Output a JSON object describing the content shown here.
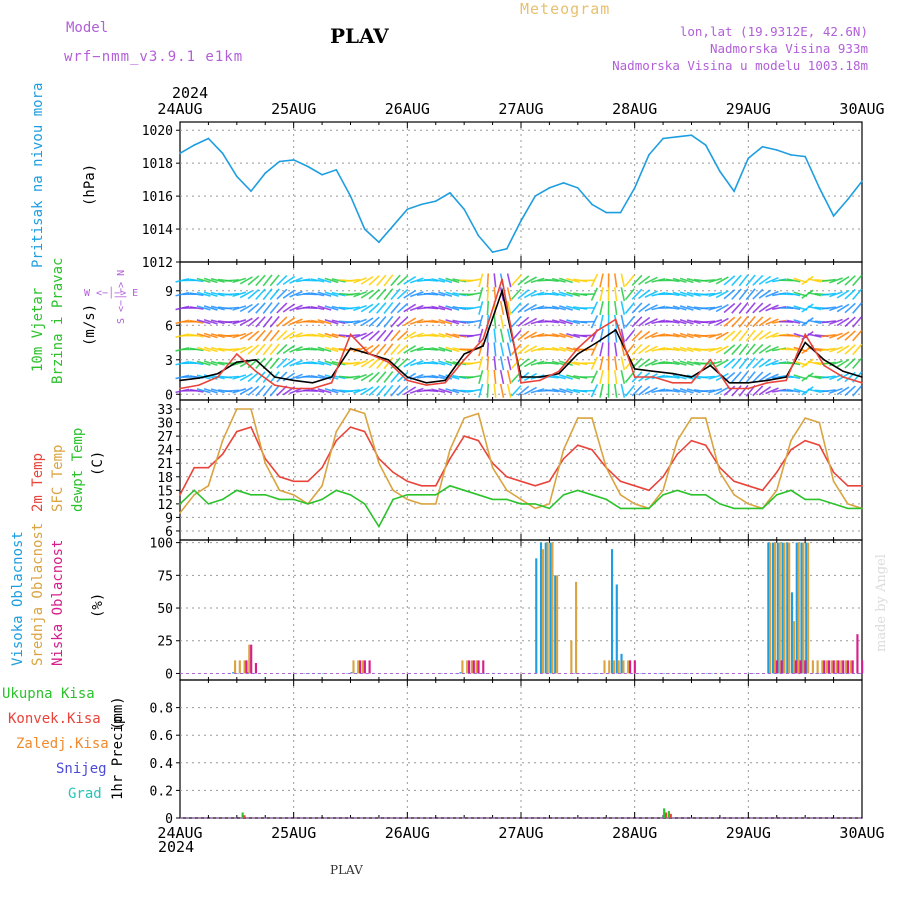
{
  "header": {
    "model_label": "Model",
    "model_name": "wrf−nmm_v3.9.1  e1km",
    "station": "PLAV",
    "meteogram": "Meteogram",
    "lonlat": "lon,lat (19.9312E, 42.6N)",
    "elevation": "Nadmorska Visina 933m",
    "elevation_model": "Nadmorska Visina u modelu 1003.18m",
    "year": "2024",
    "footer": "PLAV",
    "credit": "made by Angel"
  },
  "colors": {
    "pressure": "#1e9ee0",
    "temp2m": "#e8443a",
    "sfc": "#d9a441",
    "dewpt": "#2cc22c",
    "high": "#1e9ee0",
    "mid": "#d9a441",
    "low": "#d61e8c",
    "total": "#2cc22c",
    "conv": "#e8443a",
    "stratiform": "#f08a2c",
    "snow": "#4a4ad8",
    "graupel": "#27c4b8",
    "purple": "#b25fd8"
  },
  "chart_data": [
    {
      "type": "line",
      "panel": "pressure",
      "ylabel_lines": [
        "Pritisak na nivou mora"
      ],
      "unit": "(hPa)",
      "x_ticks": [
        "24AUG",
        "25AUG",
        "26AUG",
        "27AUG",
        "28AUG",
        "29AUG",
        "30AUG"
      ],
      "x_range": [
        0,
        144
      ],
      "ylim": [
        1012,
        1020.5
      ],
      "y_ticks": [
        1012,
        1014,
        1016,
        1018,
        1020
      ],
      "series": [
        {
          "color_key": "pressure",
          "x": [
            0,
            3,
            6,
            9,
            12,
            15,
            18,
            21,
            24,
            27,
            30,
            33,
            36,
            39,
            42,
            45,
            48,
            51,
            54,
            57,
            60,
            63,
            66,
            69,
            72,
            75,
            78,
            81,
            84,
            87,
            90,
            93,
            96,
            99,
            102,
            105,
            108,
            111,
            114,
            117,
            120,
            123,
            126,
            129,
            132,
            135,
            138,
            141,
            144
          ],
          "y": [
            1018.6,
            1019.1,
            1019.5,
            1018.6,
            1017.2,
            1016.3,
            1017.4,
            1018.1,
            1018.2,
            1017.8,
            1017.3,
            1017.6,
            1016.0,
            1014.0,
            1013.2,
            1014.2,
            1015.2,
            1015.5,
            1015.7,
            1016.2,
            1015.2,
            1013.6,
            1012.6,
            1012.8,
            1014.5,
            1016.0,
            1016.5,
            1016.8,
            1016.5,
            1015.5,
            1015.0,
            1015.0,
            1016.5,
            1018.5,
            1019.5,
            1019.6,
            1019.7,
            1019.1,
            1017.5,
            1016.3,
            1018.3,
            1019.0,
            1018.8,
            1018.5,
            1018.4,
            1016.5,
            1014.8,
            1015.8,
            1016.9
          ]
        }
      ]
    },
    {
      "type": "line",
      "panel": "wind",
      "ylabel_lines": [
        "10m Vjetar",
        "Brzina i Pravac"
      ],
      "unit": "(m/s)",
      "x_ticks": [
        "24AUG",
        "25AUG",
        "26AUG",
        "27AUG",
        "28AUG",
        "29AUG",
        "30AUG"
      ],
      "x_range": [
        0,
        144
      ],
      "ylim": [
        -0.5,
        11.5
      ],
      "y_ticks": [
        0,
        3,
        6,
        9
      ],
      "compass": "W <−│−> E",
      "compass_v": "S <−│−> N",
      "series": [
        {
          "name": "speed",
          "color_key": "black",
          "x": [
            0,
            4,
            8,
            12,
            16,
            20,
            24,
            28,
            32,
            36,
            40,
            44,
            48,
            52,
            56,
            60,
            64,
            68,
            72,
            76,
            80,
            84,
            88,
            92,
            96,
            100,
            104,
            108,
            112,
            116,
            120,
            124,
            128,
            132,
            136,
            140,
            144
          ],
          "y": [
            1.2,
            1.4,
            1.8,
            2.8,
            3.0,
            1.5,
            1.2,
            1.0,
            1.5,
            4.0,
            3.5,
            3.0,
            1.5,
            1.0,
            1.2,
            3.5,
            4.2,
            9.0,
            1.5,
            1.5,
            1.8,
            3.5,
            4.5,
            5.6,
            2.2,
            2.0,
            1.8,
            1.5,
            2.5,
            1.0,
            1.0,
            1.2,
            1.5,
            4.5,
            3.0,
            2.0,
            1.5
          ]
        },
        {
          "name": "gust",
          "color_key": "temp2m",
          "x": [
            0,
            4,
            8,
            12,
            16,
            20,
            24,
            28,
            32,
            36,
            40,
            44,
            48,
            52,
            56,
            60,
            64,
            68,
            72,
            76,
            80,
            84,
            88,
            92,
            96,
            100,
            104,
            108,
            112,
            116,
            120,
            124,
            128,
            132,
            136,
            140,
            144
          ],
          "y": [
            0.5,
            0.8,
            1.5,
            3.5,
            2.0,
            0.8,
            0.5,
            0.5,
            1.0,
            5.2,
            3.5,
            2.8,
            1.2,
            0.8,
            1.0,
            3.0,
            4.8,
            10.0,
            1.0,
            1.2,
            2.0,
            4.0,
            5.5,
            6.5,
            1.5,
            1.5,
            1.0,
            1.0,
            3.0,
            0.5,
            0.5,
            1.0,
            1.2,
            5.2,
            2.5,
            1.5,
            1.0
          ]
        }
      ]
    },
    {
      "type": "line",
      "panel": "temperature",
      "ylabel_lines": [
        "2m Temp",
        "SFC Temp",
        "dewpt Temp"
      ],
      "unit": "(C)",
      "x_ticks": [
        "24AUG",
        "25AUG",
        "26AUG",
        "27AUG",
        "28AUG",
        "29AUG",
        "30AUG"
      ],
      "x_range": [
        0,
        144
      ],
      "ylim": [
        4,
        35
      ],
      "y_ticks": [
        6,
        9,
        12,
        15,
        18,
        21,
        24,
        27,
        30,
        33
      ],
      "series": [
        {
          "name": "2m Temp",
          "color_key": "temp2m",
          "x": [
            0,
            3,
            6,
            9,
            12,
            15,
            18,
            21,
            24,
            27,
            30,
            33,
            36,
            39,
            42,
            45,
            48,
            51,
            54,
            57,
            60,
            63,
            66,
            69,
            72,
            75,
            78,
            81,
            84,
            87,
            90,
            93,
            96,
            99,
            102,
            105,
            108,
            111,
            114,
            117,
            120,
            123,
            126,
            129,
            132,
            135,
            138,
            141,
            144
          ],
          "y": [
            14,
            20,
            20,
            23,
            28,
            29,
            22,
            18,
            17,
            17,
            20,
            26,
            29,
            28,
            22,
            19,
            17,
            16,
            16,
            22,
            27,
            26,
            21,
            18,
            17,
            16,
            17,
            22,
            25,
            24,
            20,
            17,
            16,
            15,
            18,
            23,
            26,
            25,
            20,
            17,
            16,
            15,
            19,
            24,
            26,
            25,
            19,
            16,
            16
          ]
        },
        {
          "name": "SFC Temp",
          "color_key": "sfc",
          "x": [
            0,
            3,
            6,
            9,
            12,
            15,
            18,
            21,
            24,
            27,
            30,
            33,
            36,
            39,
            42,
            45,
            48,
            51,
            54,
            57,
            60,
            63,
            66,
            69,
            72,
            75,
            78,
            81,
            84,
            87,
            90,
            93,
            96,
            99,
            102,
            105,
            108,
            111,
            114,
            117,
            120,
            123,
            126,
            129,
            132,
            135,
            138,
            141,
            144
          ],
          "y": [
            10,
            14,
            16,
            26,
            33,
            33,
            21,
            15,
            14,
            12,
            16,
            28,
            33,
            32,
            21,
            15,
            13,
            12,
            12,
            24,
            31,
            32,
            20,
            15,
            13,
            11,
            12,
            24,
            31,
            31,
            20,
            14,
            12,
            11,
            15,
            26,
            31,
            31,
            19,
            14,
            12,
            11,
            15,
            26,
            31,
            30,
            17,
            12,
            11
          ]
        },
        {
          "name": "dewpt Temp",
          "color_key": "dewpt",
          "x": [
            0,
            3,
            6,
            9,
            12,
            15,
            18,
            21,
            24,
            27,
            30,
            33,
            36,
            39,
            42,
            45,
            48,
            51,
            54,
            57,
            60,
            63,
            66,
            69,
            72,
            75,
            78,
            81,
            84,
            87,
            90,
            93,
            96,
            99,
            102,
            105,
            108,
            111,
            114,
            117,
            120,
            123,
            126,
            129,
            132,
            135,
            138,
            141,
            144
          ],
          "y": [
            12,
            15,
            12,
            13,
            15,
            14,
            14,
            13,
            13,
            12,
            13,
            15,
            14,
            12,
            7,
            13,
            14,
            14,
            14,
            16,
            15,
            14,
            13,
            13,
            12,
            12,
            11,
            14,
            15,
            14,
            13,
            11,
            11,
            11,
            14,
            15,
            14,
            14,
            12,
            11,
            11,
            11,
            14,
            15,
            13,
            13,
            12,
            11,
            11
          ]
        }
      ]
    },
    {
      "type": "bar",
      "panel": "clouds",
      "ylabel_lines": [
        "Visoka Oblacnost",
        "Srednja Oblacnost",
        "Niska Oblacnost"
      ],
      "unit": "(%)",
      "x_ticks": [
        "24AUG",
        "25AUG",
        "26AUG",
        "27AUG",
        "28AUG",
        "29AUG",
        "30AUG"
      ],
      "x_range": [
        0,
        144
      ],
      "ylim": [
        -5,
        102
      ],
      "y_ticks": [
        0,
        25,
        50,
        75,
        100
      ],
      "series": [
        {
          "name": "Visoka Oblacnost",
          "color_key": "high",
          "x": [
            10,
            11,
            12,
            13,
            14,
            15,
            26,
            27,
            28,
            29,
            30,
            35,
            36,
            37,
            38,
            55,
            56,
            57,
            58,
            59,
            63,
            64,
            65,
            66,
            67,
            75,
            76,
            77,
            78,
            79,
            80,
            83,
            84,
            85,
            86,
            87,
            88,
            89,
            90,
            91,
            92,
            93,
            97,
            98,
            99,
            100,
            101,
            102,
            103,
            104,
            105,
            106,
            107,
            108,
            109,
            110,
            111,
            112,
            113,
            114,
            115,
            120,
            121,
            122,
            123,
            124,
            125,
            126,
            127,
            128,
            129,
            130,
            131,
            132,
            133,
            134,
            135,
            136,
            137,
            138,
            139,
            140,
            141,
            142,
            143
          ],
          "y": [
            0,
            1,
            0,
            0,
            1,
            0,
            0,
            0,
            0,
            0,
            0,
            0,
            1,
            0,
            0,
            0,
            0,
            0,
            0,
            1,
            0,
            0,
            0,
            0,
            0,
            88,
            100,
            100,
            100,
            75,
            0,
            0,
            0,
            0,
            0,
            0,
            0,
            0,
            0,
            95,
            68,
            15,
            0,
            0,
            0,
            0,
            0,
            0,
            0,
            0,
            0,
            0,
            0,
            0,
            0,
            0,
            0,
            0,
            0,
            0,
            0,
            0,
            0,
            0,
            0,
            100,
            100,
            100,
            100,
            100,
            62,
            100,
            100,
            100,
            0,
            0,
            0,
            0,
            0,
            0,
            0,
            0,
            0,
            0,
            0
          ]
        },
        {
          "name": "Srednja Oblacnost",
          "color_key": "mid",
          "x": [
            11,
            12,
            13,
            14,
            36,
            37,
            38,
            59,
            60,
            61,
            62,
            76,
            77,
            78,
            79,
            82,
            83,
            89,
            90,
            91,
            92,
            93,
            94,
            124,
            125,
            126,
            127,
            128,
            129,
            130,
            131,
            132,
            133,
            134,
            135,
            136,
            137,
            138,
            139,
            140,
            141
          ],
          "y": [
            10,
            10,
            10,
            22,
            10,
            10,
            10,
            10,
            10,
            10,
            10,
            95,
            100,
            100,
            75,
            25,
            70,
            10,
            10,
            10,
            10,
            10,
            10,
            100,
            100,
            100,
            100,
            100,
            40,
            100,
            100,
            100,
            10,
            10,
            10,
            10,
            10,
            10,
            10,
            10,
            10
          ]
        },
        {
          "name": "Niska Oblacnost",
          "color_key": "low",
          "x": [
            13,
            14,
            15,
            37,
            38,
            39,
            60,
            61,
            62,
            63,
            82,
            83,
            94,
            95,
            125,
            126,
            129,
            130,
            131,
            135,
            136,
            137,
            138,
            139,
            140,
            141,
            142,
            143
          ],
          "y": [
            10,
            22,
            8,
            10,
            10,
            10,
            10,
            10,
            10,
            10,
            0,
            0,
            10,
            10,
            10,
            10,
            10,
            10,
            10,
            10,
            10,
            10,
            10,
            10,
            10,
            10,
            30,
            10
          ]
        }
      ]
    },
    {
      "type": "bar",
      "panel": "precip",
      "ylabel_lines": [
        "1hr Precip"
      ],
      "unit": "(mm)",
      "legend": [
        "Ukupna  Kisa",
        "Konvek.Kisa",
        "Zaledj.Kisa",
        "Snijeg",
        "Grad"
      ],
      "x_ticks": [
        "24AUG",
        "25AUG",
        "26AUG",
        "27AUG",
        "28AUG",
        "29AUG",
        "30AUG"
      ],
      "x_range": [
        0,
        144
      ],
      "ylim": [
        0,
        1.0
      ],
      "y_ticks": [
        0,
        0.2,
        0.4,
        0.6,
        0.8
      ],
      "series": [
        {
          "name": "Ukupna  Kisa",
          "color_key": "total",
          "x": [
            13,
            102,
            103
          ],
          "y": [
            0.04,
            0.07,
            0.05
          ]
        },
        {
          "name": "Konvek.Kisa",
          "color_key": "conv",
          "x": [
            13,
            102,
            103
          ],
          "y": [
            0.02,
            0.04,
            0.03
          ]
        }
      ]
    }
  ]
}
